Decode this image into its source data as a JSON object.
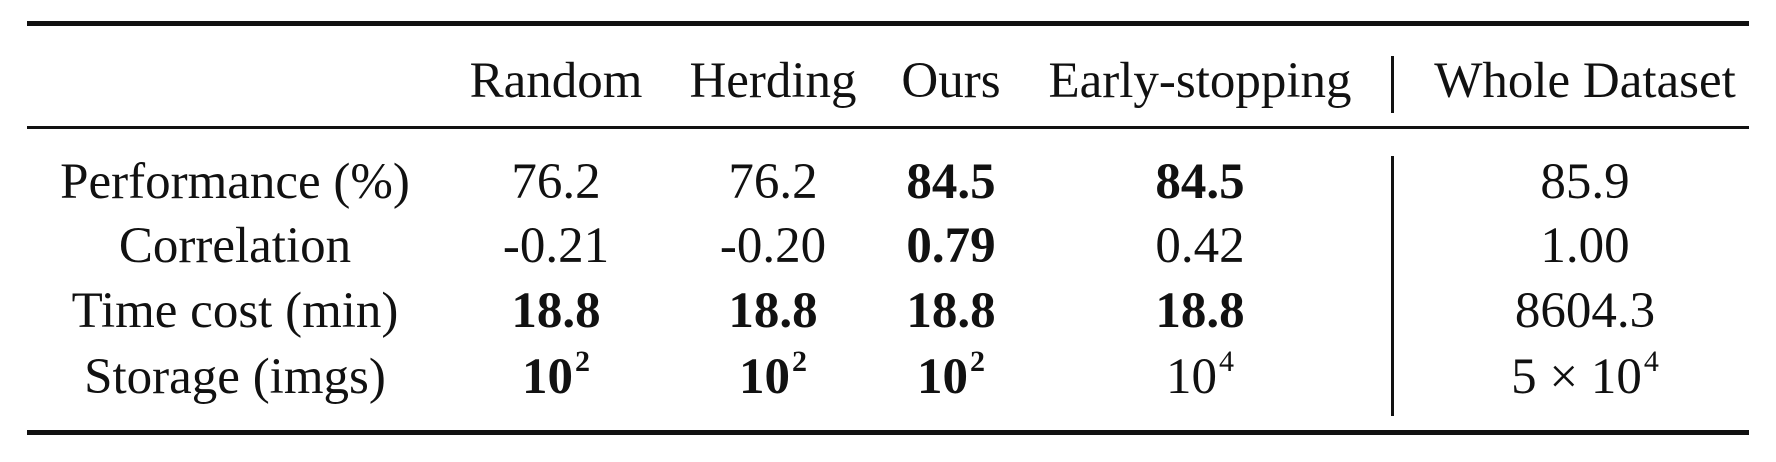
{
  "table": {
    "headers": [
      "",
      "Random",
      "Herding",
      "Ours",
      "Early-stopping",
      "Whole Dataset"
    ],
    "rows": [
      {
        "label": "Performance (%)",
        "cells": [
          {
            "text": "76.2",
            "bold": false
          },
          {
            "text": "76.2",
            "bold": false
          },
          {
            "text": "84.5",
            "bold": true
          },
          {
            "text": "84.5",
            "bold": true
          },
          {
            "text": "85.9",
            "bold": false
          }
        ]
      },
      {
        "label": "Correlation",
        "cells": [
          {
            "text": "-0.21",
            "bold": false
          },
          {
            "text": "-0.20",
            "bold": false
          },
          {
            "text": "0.79",
            "bold": true
          },
          {
            "text": "0.42",
            "bold": false
          },
          {
            "text": "1.00",
            "bold": false
          }
        ]
      },
      {
        "label": "Time cost (min)",
        "cells": [
          {
            "text": "18.8",
            "bold": true
          },
          {
            "text": "18.8",
            "bold": true
          },
          {
            "text": "18.8",
            "bold": true
          },
          {
            "text": "18.8",
            "bold": true
          },
          {
            "text": "8604.3",
            "bold": false
          }
        ]
      },
      {
        "label": "Storage (imgs)",
        "cells": [
          {
            "base": "10",
            "exp": "2",
            "bold": true
          },
          {
            "base": "10",
            "exp": "2",
            "bold": true
          },
          {
            "base": "10",
            "exp": "2",
            "bold": true
          },
          {
            "base": "10",
            "exp": "4",
            "bold": false
          },
          {
            "base": "5 × 10",
            "exp": "4",
            "bold": false
          }
        ]
      }
    ]
  }
}
